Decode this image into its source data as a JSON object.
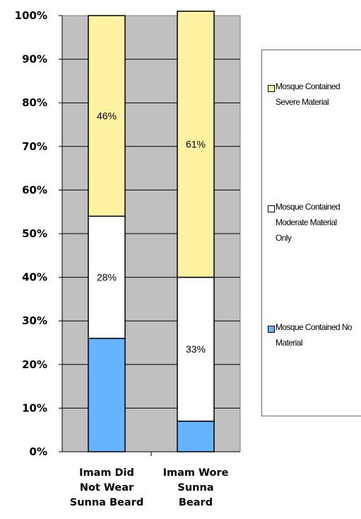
{
  "chart_data": {
    "type": "bar",
    "stacked": true,
    "percent": true,
    "categories": [
      "Imam Did Not Wear Sunna Beard",
      "Imam Wore Sunna Beard"
    ],
    "category_lines": [
      [
        "Imam Did",
        "Not Wear",
        "Sunna Beard"
      ],
      [
        "Imam Wore",
        "Sunna",
        "Beard"
      ]
    ],
    "series": [
      {
        "name": "Mosque Contained No Material",
        "values": [
          26,
          7
        ],
        "labels": [
          "",
          ""
        ],
        "color": "#66b3ff"
      },
      {
        "name": "Mosque Contained Moderate Material Only",
        "values": [
          28,
          33
        ],
        "labels": [
          "28%",
          "33%"
        ],
        "color": "#ffffff"
      },
      {
        "name": "Mosque Contained Severe Material",
        "values": [
          46,
          61
        ],
        "labels": [
          "46%",
          "61%"
        ],
        "color": "#fff2a0"
      }
    ],
    "ylim": [
      0,
      100
    ],
    "yticks": [
      "0%",
      "10%",
      "20%",
      "30%",
      "40%",
      "50%",
      "60%",
      "70%",
      "80%",
      "90%",
      "100%"
    ],
    "plot_background": "#c0c0c0",
    "grid": true,
    "legend_position": "right",
    "legend_order": [
      "Mosque Contained Severe Material",
      "Mosque Contained Moderate Material Only",
      "Mosque Contained No Material"
    ]
  }
}
